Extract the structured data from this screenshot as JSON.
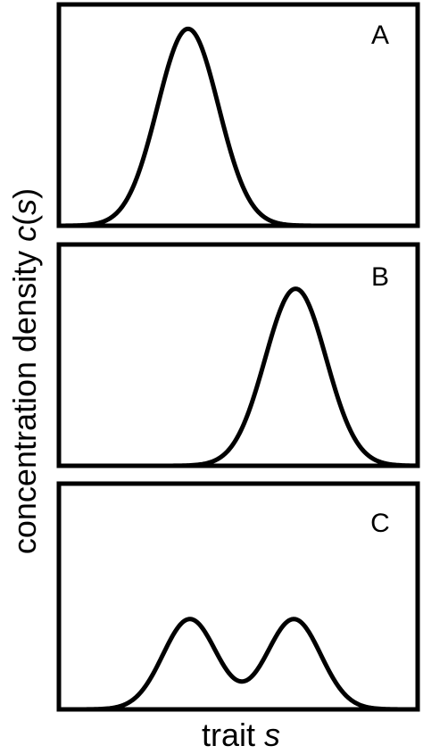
{
  "figure": {
    "ylabel_prefix": "concentration density ",
    "ylabel_var": "c",
    "ylabel_open": "(",
    "ylabel_arg": "s",
    "ylabel_close": ")",
    "xlabel_prefix": "trait ",
    "xlabel_var": "s"
  },
  "chart_data": [
    {
      "type": "line",
      "panel_label": "A",
      "grid": false,
      "ticks": false,
      "xlim": [
        0,
        1
      ],
      "ylim": [
        0,
        1
      ],
      "series": [
        {
          "components": [
            {
              "mu": 0.36,
              "sigma": 0.085,
              "amp": 0.89
            }
          ]
        }
      ]
    },
    {
      "type": "line",
      "panel_label": "B",
      "grid": false,
      "ticks": false,
      "xlim": [
        0,
        1
      ],
      "ylim": [
        0,
        1
      ],
      "series": [
        {
          "components": [
            {
              "mu": 0.66,
              "sigma": 0.085,
              "amp": 0.8
            }
          ]
        }
      ]
    },
    {
      "type": "line",
      "panel_label": "C",
      "grid": false,
      "ticks": false,
      "xlim": [
        0,
        1
      ],
      "ylim": [
        0,
        1
      ],
      "series": [
        {
          "components": [
            {
              "mu": 0.365,
              "sigma": 0.075,
              "amp": 0.4
            },
            {
              "mu": 0.655,
              "sigma": 0.075,
              "amp": 0.4
            }
          ]
        }
      ]
    }
  ]
}
